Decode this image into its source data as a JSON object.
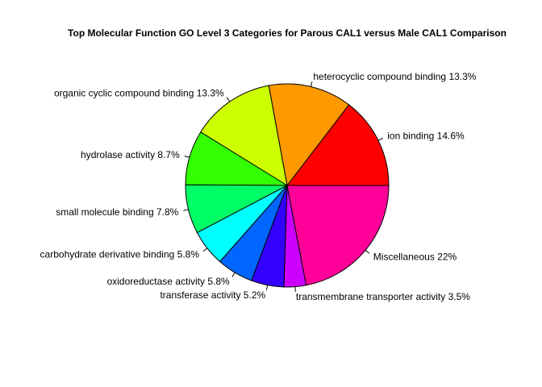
{
  "chart_data": {
    "type": "pie",
    "title": "Top Molecular Function GO Level 3 Categories for Parous CAL1 versus Male CAL1 Comparison",
    "start_angle_deg": 0,
    "direction": "counterclockwise",
    "slices": [
      {
        "label": "ion binding 14.6%",
        "value": 14.6,
        "color": "#FF0000"
      },
      {
        "label": "heterocyclic compound binding 13.3%",
        "value": 13.3,
        "color": "#FF9900"
      },
      {
        "label": "organic cyclic compound binding 13.3%",
        "value": 13.3,
        "color": "#CCFF00"
      },
      {
        "label": "hydrolase activity 8.7%",
        "value": 8.7,
        "color": "#33FF00"
      },
      {
        "label": "small molecule binding 7.8%",
        "value": 7.8,
        "color": "#00FF66"
      },
      {
        "label": "carbohydrate derivative binding 5.8%",
        "value": 5.8,
        "color": "#00FFFF"
      },
      {
        "label": "oxidoreductase activity 5.8%",
        "value": 5.8,
        "color": "#0066FF"
      },
      {
        "label": "transferase activity 5.2%",
        "value": 5.2,
        "color": "#3300FF"
      },
      {
        "label": "transmembrane transporter activity 3.5%",
        "value": 3.5,
        "color": "#CC00FF"
      },
      {
        "label": "Miscellaneous 22%",
        "value": 22.0,
        "color": "#FF0099"
      }
    ]
  }
}
